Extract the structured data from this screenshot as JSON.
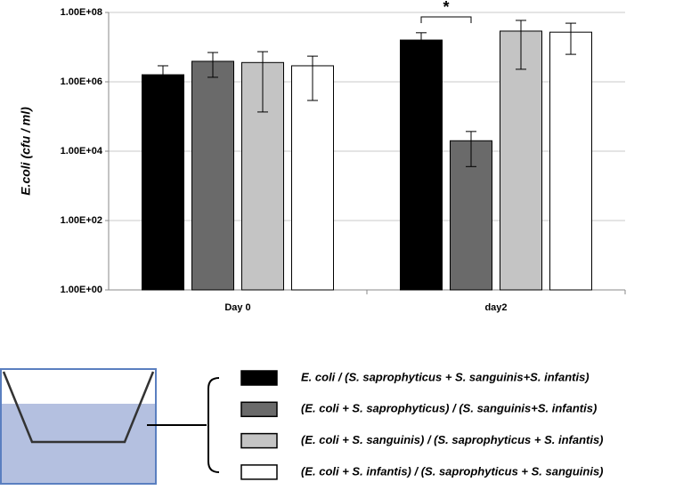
{
  "chart_data": {
    "type": "bar",
    "log_scale": true,
    "grid": true,
    "y_label": "E.coli (cfu / ml)",
    "annotation": "*",
    "categories": [
      "Day 0",
      "day2"
    ],
    "series": [
      {
        "name": "E. coli /  (S. saprophyticus + S. sanguinis+S. infantis)",
        "color": "#000000",
        "values": [
          1600000,
          16000000
        ],
        "err_low": [
          900000,
          10000000
        ],
        "err_high": [
          2900000,
          26000000
        ]
      },
      {
        "name": "(E. coli + S. saprophyticus)  / (S. sanguinis+S. infantis)",
        "color": "#6a6a6a",
        "values": [
          3900000,
          20000
        ],
        "err_low": [
          1350000,
          3600
        ],
        "err_high": [
          7000000,
          37000
        ]
      },
      {
        "name": "(E. coli + S. sanguinis)  /  (S. saprophyticus + S. infantis)",
        "color": "#c4c4c4",
        "values": [
          3600000,
          29000000
        ],
        "err_low": [
          135000,
          2300000
        ],
        "err_high": [
          7400000,
          59000000
        ]
      },
      {
        "name": "(E. coli + S. infantis)  /  (S. saprophyticus  + S. sanguinis)",
        "color": "#ffffff",
        "values": [
          2900000,
          27000000
        ],
        "err_low": [
          290000,
          6200000
        ],
        "err_high": [
          5500000,
          49000000
        ]
      }
    ],
    "ylim": [
      1,
      100000000
    ],
    "yticks": [
      {
        "value": 1,
        "label": "1.00E+00"
      },
      {
        "value": 100,
        "label": "1.00E+02"
      },
      {
        "value": 10000,
        "label": "1.00E+04"
      },
      {
        "value": 1000000,
        "label": "1.00E+06"
      },
      {
        "value": 100000000,
        "label": "1.00E+08"
      }
    ]
  }
}
